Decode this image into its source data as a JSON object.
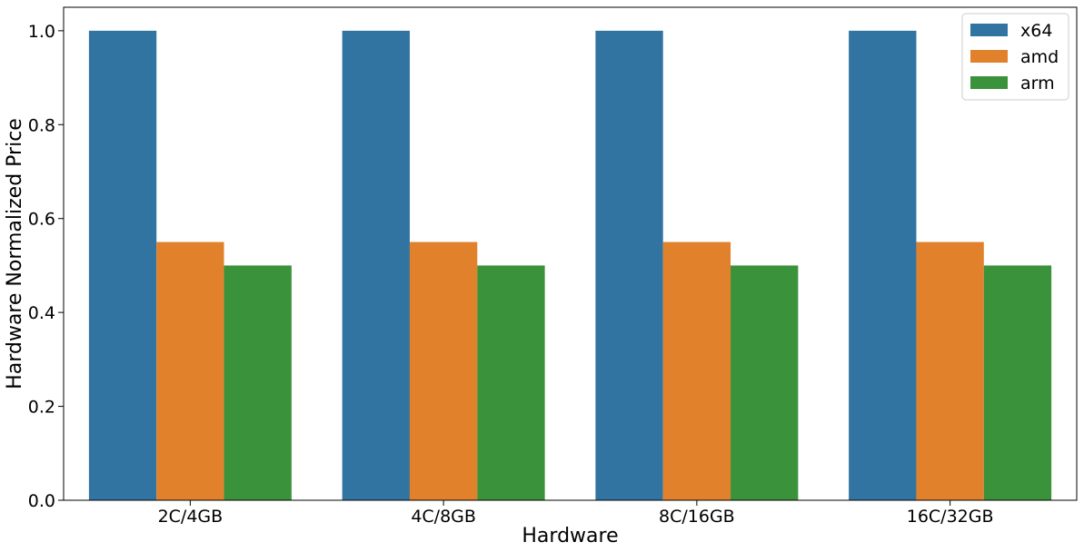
{
  "chart_data": {
    "type": "bar",
    "title": "",
    "xlabel": "Hardware",
    "ylabel": "Hardware Normalized Price",
    "categories": [
      "2C/4GB",
      "4C/8GB",
      "8C/16GB",
      "16C/32GB"
    ],
    "series": [
      {
        "name": "x64",
        "color": "#3274a1",
        "values": [
          1.0,
          1.0,
          1.0,
          1.0
        ]
      },
      {
        "name": "amd",
        "color": "#e1812c",
        "values": [
          0.55,
          0.55,
          0.55,
          0.55
        ]
      },
      {
        "name": "arm",
        "color": "#3a923a",
        "values": [
          0.5,
          0.5,
          0.5,
          0.5
        ]
      }
    ],
    "ylim": [
      0,
      1.05
    ],
    "yticks": [
      0.0,
      0.2,
      0.4,
      0.6,
      0.8,
      1.0
    ],
    "ytick_labels": [
      "0.0",
      "0.2",
      "0.4",
      "0.6",
      "0.8",
      "1.0"
    ],
    "grid": false,
    "legend_position": "top-right"
  }
}
